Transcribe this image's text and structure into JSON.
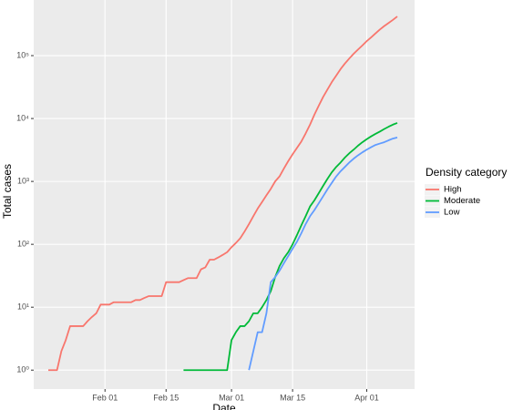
{
  "chart_data": {
    "type": "line",
    "x_label": "Date",
    "y_label": "Total cases",
    "legend_title": "Density category",
    "legend_position": "right",
    "log_scale_y": true,
    "grid": true,
    "categories": [
      null,
      null,
      null,
      null,
      null,
      null,
      null,
      null,
      null,
      null,
      null,
      null,
      null,
      "Feb 01",
      null,
      null,
      null,
      null,
      null,
      null,
      null,
      null,
      null,
      null,
      null,
      null,
      null,
      "Feb 15",
      null,
      null,
      null,
      null,
      null,
      null,
      null,
      null,
      null,
      null,
      null,
      null,
      null,
      null,
      "Mar 01",
      null,
      null,
      null,
      null,
      null,
      null,
      null,
      null,
      null,
      null,
      null,
      null,
      null,
      "Mar 15",
      null,
      null,
      null,
      null,
      null,
      null,
      null,
      null,
      null,
      null,
      null,
      null,
      null,
      null,
      null,
      null,
      "Apr 01",
      null,
      null,
      null,
      null,
      null,
      null,
      null
    ],
    "series": [
      {
        "name": "High",
        "color": "#F8766D",
        "values": [
          1,
          1,
          1,
          2,
          3,
          5,
          5,
          5,
          5,
          6,
          7,
          8,
          11,
          11,
          11,
          12,
          12,
          12,
          12,
          12,
          13,
          13,
          14,
          15,
          15,
          15,
          15,
          25,
          25,
          25,
          25,
          27,
          29,
          29,
          29,
          40,
          43,
          57,
          57,
          62,
          68,
          75,
          90,
          105,
          125,
          160,
          210,
          280,
          370,
          470,
          600,
          760,
          1000,
          1200,
          1600,
          2100,
          2700,
          3400,
          4300,
          5800,
          8000,
          11500,
          16000,
          22000,
          29000,
          38000,
          48000,
          61000,
          75000,
          90000,
          107000,
          125000,
          145000,
          170000,
          195000,
          225000,
          260000,
          295000,
          330000,
          370000,
          420000
        ]
      },
      {
        "name": "Moderate",
        "color": "#00BA38",
        "values": [
          null,
          null,
          null,
          null,
          null,
          null,
          null,
          null,
          null,
          null,
          null,
          null,
          null,
          null,
          null,
          null,
          null,
          null,
          null,
          null,
          null,
          null,
          null,
          null,
          null,
          null,
          null,
          null,
          null,
          null,
          null,
          1,
          1,
          1,
          1,
          1,
          1,
          1,
          1,
          1,
          1,
          1,
          3,
          4,
          5,
          5,
          6,
          8,
          8,
          10,
          13,
          18,
          30,
          45,
          60,
          75,
          100,
          140,
          200,
          280,
          400,
          500,
          650,
          850,
          1100,
          1400,
          1700,
          2000,
          2400,
          2800,
          3200,
          3700,
          4200,
          4700,
          5200,
          5700,
          6200,
          6800,
          7400,
          8000,
          8500
        ]
      },
      {
        "name": "Low",
        "color": "#619CFF",
        "values": [
          null,
          null,
          null,
          null,
          null,
          null,
          null,
          null,
          null,
          null,
          null,
          null,
          null,
          null,
          null,
          null,
          null,
          null,
          null,
          null,
          null,
          null,
          null,
          null,
          null,
          null,
          null,
          null,
          null,
          null,
          null,
          null,
          null,
          null,
          null,
          null,
          null,
          null,
          null,
          null,
          null,
          null,
          null,
          null,
          null,
          null,
          1,
          2,
          4,
          4,
          8,
          25,
          30,
          38,
          50,
          65,
          85,
          110,
          150,
          210,
          280,
          350,
          450,
          580,
          750,
          950,
          1200,
          1450,
          1700,
          2000,
          2300,
          2600,
          2900,
          3200,
          3500,
          3800,
          4000,
          4200,
          4500,
          4800,
          5000
        ]
      }
    ],
    "ylim": [
      0.5,
      766000
    ],
    "yticks": [
      {
        "value": 1,
        "label": "10⁰"
      },
      {
        "value": 10,
        "label": "10¹"
      },
      {
        "value": 100,
        "label": "10²"
      },
      {
        "value": 1000,
        "label": "10³"
      },
      {
        "value": 10000,
        "label": "10⁴"
      },
      {
        "value": 100000,
        "label": "10⁵"
      }
    ]
  }
}
